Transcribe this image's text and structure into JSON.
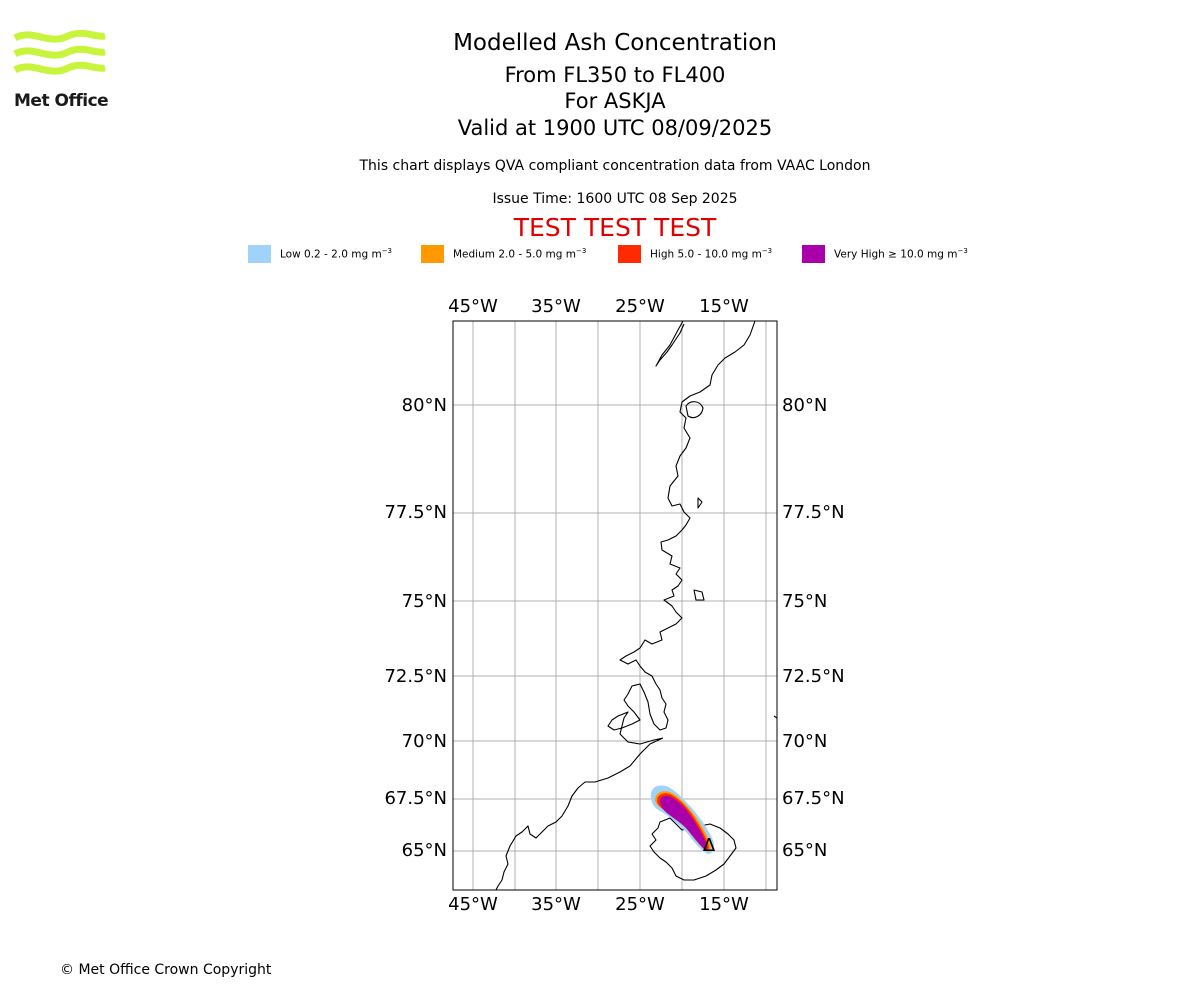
{
  "header": {
    "title": "Modelled Ash Concentration",
    "flight_levels": "From FL350 to FL400",
    "volcano": "For ASKJA",
    "valid_time": "Valid at 1900 UTC 08/09/2025",
    "description": "This chart displays QVA compliant concentration data from VAAC London",
    "issue_time": "Issue Time: 1600 UTC 08 Sep 2025",
    "test_banner": "TEST TEST TEST"
  },
  "logo": {
    "text": "Met Office",
    "color": "#c8f53c"
  },
  "legend": [
    {
      "label": "Low 0.2 - 2.0 mg m",
      "unit_sup": "−3",
      "color": "#a0d2fa"
    },
    {
      "label": "Medium 2.0 - 5.0 mg m",
      "unit_sup": "−3",
      "color": "#ff9900"
    },
    {
      "label": "High 5.0 - 10.0 mg m",
      "unit_sup": "−3",
      "color": "#ff2a00"
    },
    {
      "label": "Very High ≥ 10.0 mg m",
      "unit_sup": "−3",
      "color": "#aa00aa"
    }
  ],
  "map": {
    "longitude_labels": [
      "45°W",
      "35°W",
      "25°W",
      "15°W"
    ],
    "latitude_labels": [
      "80°N",
      "77.5°N",
      "75°N",
      "72.5°N",
      "70°N",
      "67.5°N",
      "65°N"
    ],
    "grid_color": "#b0b0b0",
    "volcano_marker": "Δ"
  },
  "footer": {
    "copyright": "© Met Office Crown Copyright"
  }
}
